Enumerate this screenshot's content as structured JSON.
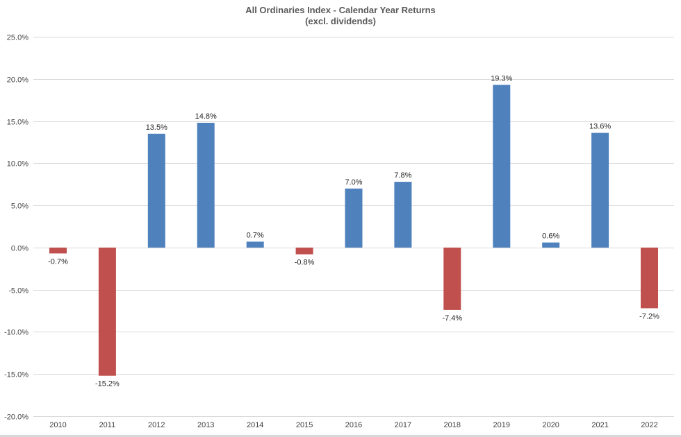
{
  "chart_data": {
    "type": "bar",
    "title": "All Ordinaries Index - Calendar Year Returns",
    "subtitle": "(excl. dividends)",
    "xlabel": "",
    "ylabel": "",
    "categories": [
      "2010",
      "2011",
      "2012",
      "2013",
      "2014",
      "2015",
      "2016",
      "2017",
      "2018",
      "2019",
      "2020",
      "2021",
      "2022"
    ],
    "values": [
      -0.7,
      -15.2,
      13.5,
      14.8,
      0.7,
      -0.8,
      7.0,
      7.8,
      -7.4,
      19.3,
      0.6,
      13.6,
      -7.2
    ],
    "data_labels": [
      "-0.7%",
      "-15.2%",
      "13.5%",
      "14.8%",
      "0.7%",
      "-0.8%",
      "7.0%",
      "7.8%",
      "-7.4%",
      "19.3%",
      "0.6%",
      "13.6%",
      "-7.2%"
    ],
    "ylim": [
      -20,
      25
    ],
    "ytick_values": [
      25,
      20,
      15,
      10,
      5,
      0,
      -5,
      -10,
      -15,
      -20
    ],
    "ytick_labels": [
      "25.0%",
      "20.0%",
      "15.0%",
      "10.0%",
      "5.0%",
      "0.0%",
      "-5.0%",
      "-10.0%",
      "-15.0%",
      "-20.0%"
    ],
    "grid": true,
    "legend": "none",
    "colors": {
      "positive": "#4f81bd",
      "negative": "#c0504d",
      "grid": "#d9d9d9",
      "text": "#404040"
    }
  }
}
